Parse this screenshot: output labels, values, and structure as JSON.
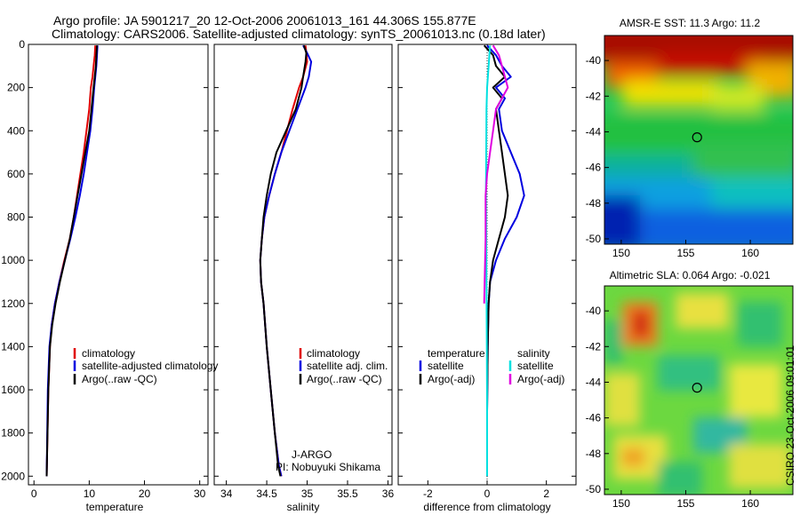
{
  "header": {
    "line1": "Argo profile: JA 5901217_20 12-Oct-2006 20061013_161 44.306S 155.877E",
    "line2": "Climatology: CARS2006. Satellite-adjusted climatology: synTS_20061013.nc (0.18d later)"
  },
  "credit": "CSIRO 23-Oct-2006 09:01:01",
  "colors": {
    "climatology": "#e00000",
    "satellite": "#0000e0",
    "argo": "#000000",
    "sat_sal": "#00e0e0",
    "argo_sal": "#e000e0"
  },
  "chart_data": [
    {
      "type": "line",
      "name": "temperature-profile",
      "xlabel": "temperature",
      "xlim": [
        -1,
        31.5
      ],
      "ylim": [
        2040,
        0
      ],
      "xticks": [
        0,
        10,
        20,
        30
      ],
      "yticks": [
        0,
        200,
        400,
        600,
        800,
        1000,
        1200,
        1400,
        1600,
        1800,
        2000
      ],
      "legend": [
        "climatology",
        "satellite-adjusted climatology",
        "Argo(..raw -QC)"
      ],
      "series": [
        {
          "name": "climatology",
          "color": "#e00000",
          "x": [
            11.1,
            11.0,
            10.8,
            10.6,
            10.3,
            10.0,
            9.5,
            9.0,
            8.4,
            7.8,
            7.2,
            6.5,
            5.5,
            4.6,
            3.8,
            3.2,
            2.9,
            2.6,
            2.3
          ],
          "y": [
            5,
            50,
            100,
            150,
            200,
            300,
            400,
            500,
            600,
            700,
            800,
            900,
            1000,
            1100,
            1200,
            1300,
            1400,
            1600,
            2000
          ]
        },
        {
          "name": "satellite-adjusted climatology",
          "color": "#0000e0",
          "x": [
            11.5,
            11.4,
            11.3,
            11.1,
            10.9,
            10.6,
            10.2,
            9.6,
            9.0,
            8.3,
            7.5,
            6.6,
            5.6,
            4.6,
            3.8,
            3.2,
            2.8,
            2.5,
            2.3
          ],
          "y": [
            5,
            50,
            100,
            150,
            200,
            300,
            400,
            500,
            600,
            700,
            800,
            900,
            1000,
            1100,
            1200,
            1300,
            1400,
            1600,
            2000
          ]
        },
        {
          "name": "Argo(..raw -QC)",
          "color": "#000000",
          "x": [
            11.4,
            11.3,
            11.2,
            11.0,
            10.8,
            10.4,
            10.0,
            9.3,
            8.6,
            7.9,
            7.2,
            6.5,
            5.6,
            4.7,
            3.9,
            3.3,
            2.9,
            2.6,
            2.3
          ],
          "y": [
            5,
            50,
            100,
            150,
            200,
            300,
            400,
            500,
            600,
            700,
            800,
            900,
            1000,
            1100,
            1200,
            1300,
            1400,
            1600,
            2000
          ]
        }
      ]
    },
    {
      "type": "line",
      "name": "salinity-profile",
      "xlabel": "salinity",
      "xlim": [
        33.85,
        36.05
      ],
      "ylim": [
        2040,
        0
      ],
      "xticks": [
        34,
        34.5,
        35,
        35.5,
        36
      ],
      "legend": [
        "climatology",
        "satellite adj. clim.",
        "Argo(..raw -QC)"
      ],
      "annotation": [
        "J-ARGO",
        "PI: Nobuyuki Shikama"
      ],
      "series": [
        {
          "name": "climatology",
          "color": "#e00000",
          "x": [
            34.98,
            34.99,
            35.0,
            34.95,
            34.9,
            34.82,
            34.75,
            34.68,
            34.6,
            34.53,
            34.47,
            34.44,
            34.42,
            34.43,
            34.46,
            34.5,
            34.55,
            34.6,
            34.65,
            34.68
          ],
          "y": [
            5,
            40,
            80,
            150,
            200,
            300,
            400,
            500,
            600,
            700,
            800,
            900,
            1000,
            1100,
            1200,
            1400,
            1600,
            1800,
            1950,
            2000
          ]
        },
        {
          "name": "satellite adj. clim.",
          "color": "#0000e0",
          "x": [
            34.95,
            35.0,
            35.05,
            35.02,
            34.98,
            34.88,
            34.78,
            34.68,
            34.6,
            34.53,
            34.47,
            34.44,
            34.42,
            34.43,
            34.46,
            34.5,
            34.55,
            34.6,
            34.65,
            34.68
          ],
          "y": [
            5,
            40,
            80,
            150,
            200,
            300,
            400,
            500,
            600,
            700,
            800,
            900,
            1000,
            1100,
            1200,
            1400,
            1600,
            1800,
            1950,
            2000
          ]
        },
        {
          "name": "Argo(..raw -QC)",
          "color": "#000000",
          "x": [
            34.96,
            34.99,
            34.98,
            34.95,
            34.93,
            34.86,
            34.74,
            34.62,
            34.55,
            34.5,
            34.46,
            34.44,
            34.42,
            34.43,
            34.46,
            34.5,
            34.55,
            34.6,
            34.64,
            34.67
          ],
          "y": [
            5,
            40,
            80,
            150,
            200,
            300,
            400,
            500,
            600,
            700,
            800,
            900,
            1000,
            1100,
            1200,
            1400,
            1600,
            1800,
            1950,
            2000
          ]
        }
      ]
    },
    {
      "type": "line",
      "name": "difference-from-climatology",
      "xlabel": "difference from climatology",
      "xlim": [
        -3,
        3
      ],
      "ylim": [
        2040,
        0
      ],
      "xticks": [
        -2,
        0,
        2
      ],
      "legend_groups": [
        {
          "heading": "temperature",
          "items": [
            "satellite",
            "Argo(-adj)"
          ]
        },
        {
          "heading": "salinity",
          "items": [
            "satellite",
            "Argo(-adj)"
          ]
        }
      ],
      "series": [
        {
          "name": "temperature satellite",
          "color": "#0000e0",
          "x": [
            0.0,
            0.3,
            0.5,
            0.8,
            0.3,
            0.6,
            0.4,
            0.5,
            0.8,
            1.1,
            1.25,
            1.0,
            0.6,
            0.3,
            0.1,
            0.05,
            0.02,
            0.0,
            0.0
          ],
          "y": [
            5,
            50,
            100,
            150,
            200,
            250,
            300,
            400,
            500,
            600,
            700,
            800,
            900,
            1000,
            1100,
            1200,
            1400,
            1700,
            2000
          ]
        },
        {
          "name": "temperature Argo(-adj)",
          "color": "#000000",
          "x": [
            -0.1,
            0.2,
            0.3,
            0.6,
            0.2,
            0.5,
            0.3,
            0.4,
            0.5,
            0.6,
            0.7,
            0.6,
            0.4,
            0.2,
            0.1,
            0.05,
            0.02,
            0.0,
            0.0
          ],
          "y": [
            5,
            50,
            100,
            150,
            200,
            250,
            300,
            400,
            500,
            600,
            700,
            800,
            900,
            1000,
            1100,
            1200,
            1400,
            1700,
            2000
          ]
        },
        {
          "name": "salinity satellite",
          "color": "#00e0e0",
          "x": [
            0.1,
            0.05,
            0.0,
            -0.02,
            -0.03,
            -0.04,
            -0.03,
            -0.02,
            -0.01,
            0.0,
            0.0
          ],
          "y": [
            5,
            100,
            200,
            300,
            500,
            700,
            900,
            1100,
            1400,
            1700,
            2000
          ]
        },
        {
          "name": "salinity Argo(-adj)",
          "color": "#e000e0",
          "x": [
            0.2,
            0.4,
            0.5,
            0.7,
            0.3,
            0.2,
            0.1,
            0.0,
            -0.05,
            -0.05,
            -0.1
          ],
          "y": [
            5,
            50,
            100,
            200,
            300,
            400,
            500,
            600,
            700,
            900,
            1200
          ]
        }
      ]
    },
    {
      "type": "heatmap",
      "name": "sst-map",
      "title": "AMSR-E SST: 11.3 Argo: 11.2",
      "xticks": [
        150,
        155,
        160
      ],
      "yticks": [
        -40,
        -42,
        -44,
        -46,
        -48,
        -50
      ],
      "xlim": [
        148.7,
        163.3
      ],
      "ylim": [
        -50.3,
        -38.6
      ],
      "argo_position": [
        155.877,
        -44.306
      ]
    },
    {
      "type": "heatmap",
      "name": "sla-map",
      "title": "Altimetric SLA: 0.064 Argo: -0.021",
      "xticks": [
        150,
        155,
        160
      ],
      "yticks": [
        -40,
        -42,
        -44,
        -46,
        -48,
        -50
      ],
      "xlim": [
        148.7,
        163.3
      ],
      "ylim": [
        -50.3,
        -38.6
      ],
      "argo_position": [
        155.877,
        -44.306
      ]
    }
  ]
}
